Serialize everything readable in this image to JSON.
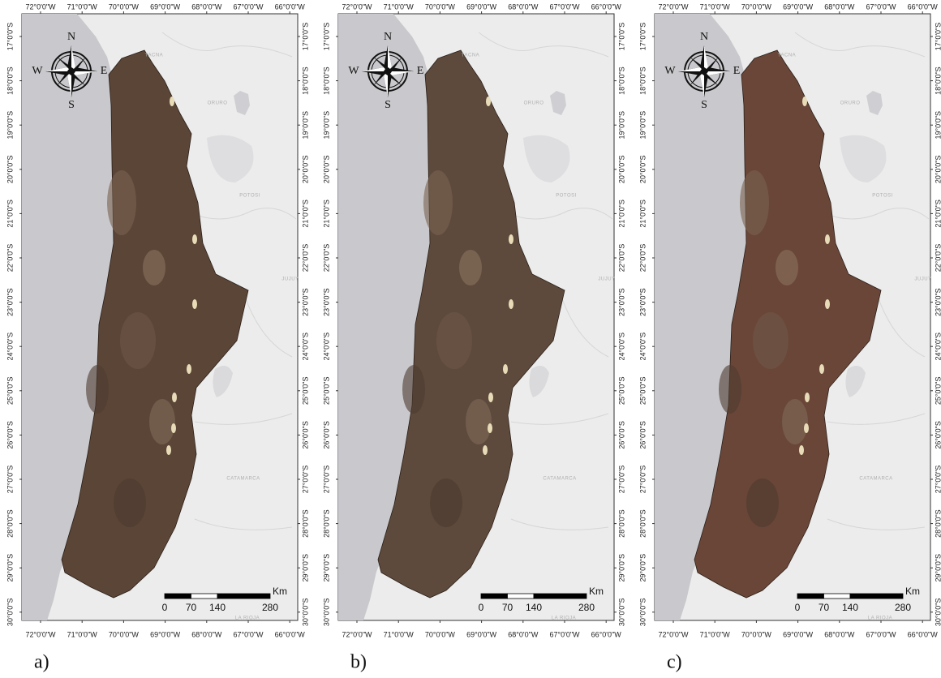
{
  "panels": [
    {
      "label": "a)",
      "color": "#5b4537"
    },
    {
      "label": "b)",
      "color": "#5e4a3c"
    },
    {
      "label": "c)",
      "color": "#6a4638"
    }
  ],
  "map": {
    "longitude_labels": [
      "72°0'0\"W",
      "71°0'0\"W",
      "70°0'0\"W",
      "69°0'0\"W",
      "68°0'0\"W",
      "67°0'0\"W",
      "66°0'0\"W"
    ],
    "latitude_labels": [
      "17°0'0\"S",
      "18°0'0\"S",
      "19°0'0\"S",
      "20°0'0\"S",
      "21°0'0\"S",
      "22°0'0\"S",
      "23°0'0\"S",
      "24°0'0\"S",
      "25°0'0\"S",
      "26°0'0\"S",
      "27°0'0\"S",
      "28°0'0\"S",
      "29°0'0\"S",
      "30°0'0\"S"
    ],
    "compass": {
      "n": "N",
      "s": "S",
      "e": "E",
      "w": "W"
    },
    "scale_bar": {
      "ticks": [
        0,
        70,
        140,
        280
      ],
      "unit": "Km"
    },
    "places": [
      "TACNA",
      "ORURO",
      "POTOSI",
      "JUJUY",
      "CATAMARCA",
      "LA RIOJA"
    ]
  }
}
